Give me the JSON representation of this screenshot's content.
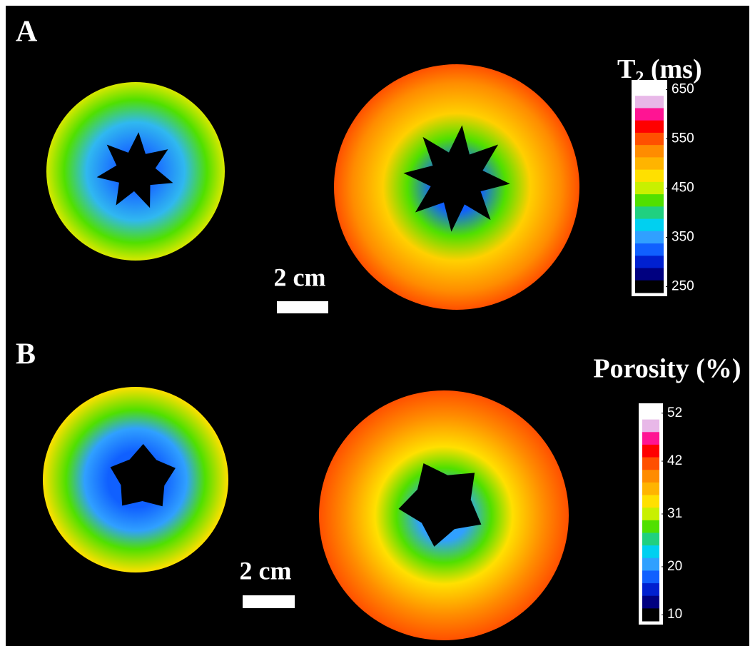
{
  "panels": [
    {
      "label": "A",
      "scale_bar": "2 cm",
      "colorbar": {
        "title": "T",
        "title_sub": "2",
        "title_unit": " (ms)",
        "ticks": [
          650,
          550,
          450,
          350,
          250
        ],
        "colors": [
          "#ffffff",
          "#e8b8e8",
          "#ff1493",
          "#ff0000",
          "#ff5000",
          "#ff8c00",
          "#ffb400",
          "#ffe000",
          "#c8f000",
          "#50e000",
          "#20d080",
          "#00d0f0",
          "#30a0ff",
          "#1060ff",
          "#0020d0",
          "#000080",
          "#000000"
        ]
      }
    },
    {
      "label": "B",
      "scale_bar": "2 cm",
      "colorbar": {
        "title": "Porosity (%)",
        "ticks": [
          52,
          42,
          31,
          20,
          10
        ],
        "colors": [
          "#ffffff",
          "#e8b8e8",
          "#ff1493",
          "#ff0000",
          "#ff5000",
          "#ff8c00",
          "#ffb400",
          "#ffe000",
          "#c8f000",
          "#50e000",
          "#20d080",
          "#00d0f0",
          "#30a0ff",
          "#1060ff",
          "#0020d0",
          "#000080",
          "#000000"
        ]
      }
    }
  ]
}
